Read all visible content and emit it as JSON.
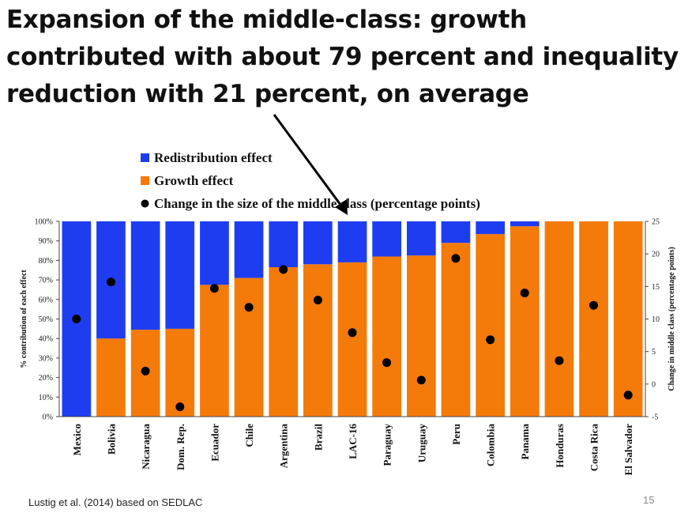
{
  "slide": {
    "title": "Expansion of the middle-class: growth contributed with about 79 percent and inequality reduction with 21 percent, on average",
    "source": "Lustig et al. (2014) based on SEDLAC",
    "page_number": "15"
  },
  "chart_data": {
    "type": "bar",
    "stacked": true,
    "categories": [
      "Mexico",
      "Bolivia",
      "Nicaragua",
      "Dom. Rep.",
      "Ecuador",
      "Chile",
      "Argentina",
      "Brazil",
      "LAC-16",
      "Paraguay",
      "Uruguay",
      "Peru",
      "Colombia",
      "Panama",
      "Honduras",
      "Costa Rica",
      "El Salvador"
    ],
    "series": [
      {
        "name": "Growth effect",
        "color": "#F47A0A",
        "values": [
          0,
          40,
          44.5,
          45,
          67.5,
          71,
          76.5,
          78,
          79,
          82,
          82.5,
          89,
          93.5,
          97.5,
          100,
          100,
          100
        ]
      },
      {
        "name": "Redistribution effect",
        "color": "#1F3DF0",
        "values": [
          100,
          60,
          55.5,
          55,
          32.5,
          29,
          23.5,
          22,
          21,
          18,
          17.5,
          11,
          6.5,
          2.5,
          0,
          0,
          0
        ]
      }
    ],
    "points": {
      "name": "Change in the size of the middle class (percentage points)",
      "color": "#000000",
      "values": [
        10.0,
        15.7,
        2.0,
        -3.5,
        14.7,
        11.8,
        17.6,
        12.9,
        7.9,
        3.3,
        0.6,
        19.3,
        6.8,
        14.0,
        3.6,
        12.1,
        -1.7
      ]
    },
    "ylabel": "% contribution of each effect",
    "ylim": [
      0,
      100
    ],
    "yticks": [
      "0%",
      "10%",
      "20%",
      "30%",
      "40%",
      "50%",
      "60%",
      "70%",
      "80%",
      "90%",
      "100%"
    ],
    "y2label": "Change in middle class (percentage points)",
    "y2lim": [
      -5,
      25
    ],
    "y2ticks": [
      "-5",
      "0",
      "5",
      "10",
      "15",
      "20",
      "25"
    ],
    "legend": {
      "placement": "top-center",
      "order": [
        "Redistribution effect",
        "Growth effect",
        "Change in the size of the middle class (percentage points)"
      ]
    },
    "grid": false
  }
}
